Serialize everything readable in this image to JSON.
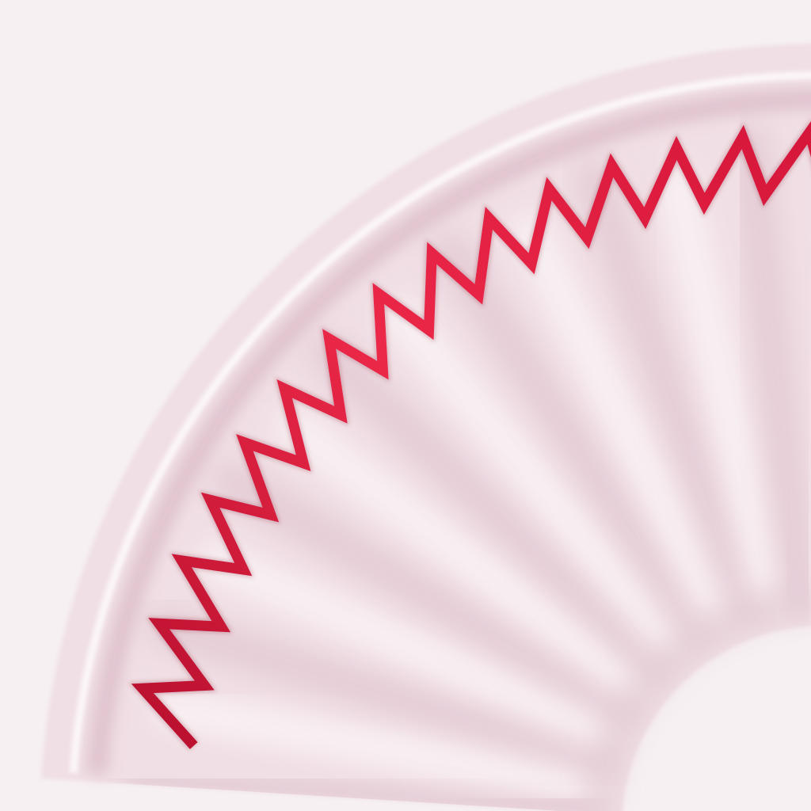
{
  "scene": {
    "subject": "fan-segment-texture",
    "colors": {
      "background": "#f6f0f2",
      "fan_base": "#f0dfe5",
      "fan_shadow": "#dcbcc8",
      "fan_highlight": "#fbf6f8",
      "rim_light": "#fdf9fa",
      "zigzag_dark": "#b8102e",
      "zigzag_mid": "#d5163a",
      "zigzag_light": "#ec2848"
    },
    "zigzag": {
      "teeth_count": 15
    },
    "fan": {
      "rib_count": 7
    }
  }
}
